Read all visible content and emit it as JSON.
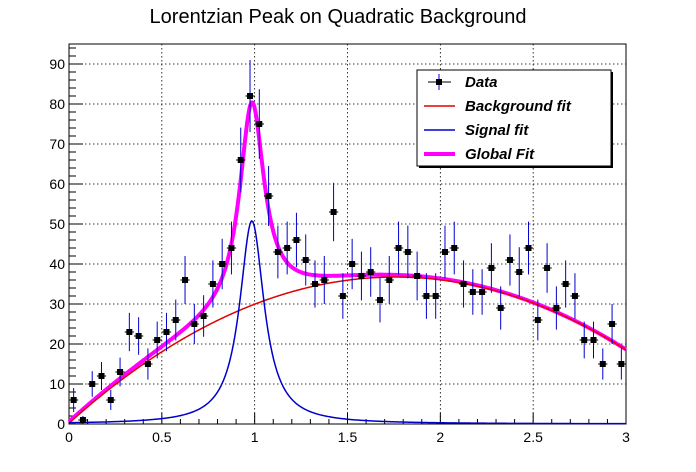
{
  "chart_data": {
    "type": "scatter",
    "title": "Lorentzian Peak on Quadratic Background",
    "xlabel": "",
    "ylabel": "",
    "xlim": [
      0,
      3
    ],
    "ylim": [
      0,
      95
    ],
    "x_ticks": [
      0,
      0.5,
      1,
      1.5,
      2,
      2.5,
      3
    ],
    "x_tick_labels": [
      "0",
      "0.5",
      "1",
      "1.5",
      "2",
      "2.5",
      "3"
    ],
    "y_ticks": [
      0,
      10,
      20,
      30,
      40,
      50,
      60,
      70,
      80,
      90
    ],
    "y_tick_labels": [
      "0",
      "10",
      "20",
      "30",
      "40",
      "50",
      "60",
      "70",
      "80",
      "90"
    ],
    "grid": true,
    "legend_position": "top-right",
    "legend": [
      {
        "label": "Data",
        "color": "#000000",
        "kind": "marker"
      },
      {
        "label": "Background fit",
        "color": "#e00000",
        "kind": "line"
      },
      {
        "label": "Signal fit",
        "color": "#0000cc",
        "kind": "line"
      },
      {
        "label": "Global Fit",
        "color": "#ff00ff",
        "kind": "thick-line"
      }
    ],
    "data_series": {
      "name": "Data",
      "x": [
        0.025,
        0.075,
        0.125,
        0.175,
        0.225,
        0.275,
        0.325,
        0.375,
        0.425,
        0.475,
        0.525,
        0.575,
        0.625,
        0.675,
        0.725,
        0.775,
        0.825,
        0.875,
        0.925,
        0.975,
        1.025,
        1.075,
        1.125,
        1.175,
        1.225,
        1.275,
        1.325,
        1.375,
        1.425,
        1.475,
        1.525,
        1.575,
        1.625,
        1.675,
        1.725,
        1.775,
        1.825,
        1.875,
        1.925,
        1.975,
        2.025,
        2.075,
        2.125,
        2.175,
        2.225,
        2.275,
        2.325,
        2.375,
        2.425,
        2.475,
        2.525,
        2.575,
        2.625,
        2.675,
        2.725,
        2.775,
        2.825,
        2.875,
        2.925,
        2.975
      ],
      "y": [
        6,
        1,
        10,
        12,
        6,
        13,
        23,
        22,
        15,
        21,
        23,
        26,
        36,
        25,
        27,
        35,
        40,
        44,
        66,
        82,
        75,
        57,
        43,
        44,
        46,
        41,
        35,
        36,
        53,
        32,
        40,
        37,
        38,
        31,
        36,
        44,
        43,
        37,
        32,
        32,
        43,
        44,
        35,
        33,
        33,
        39,
        29,
        41,
        38,
        44,
        26,
        39,
        29,
        35,
        32,
        21,
        21,
        15,
        25,
        15
      ],
      "y_err": [
        3,
        1,
        3.2,
        3.5,
        2.5,
        3.6,
        4.8,
        4.7,
        3.9,
        4.6,
        4.8,
        5.1,
        6,
        5,
        5.2,
        5.9,
        6.3,
        6.6,
        8.1,
        9,
        8.7,
        7.5,
        6.6,
        6.6,
        6.8,
        6.4,
        5.9,
        6,
        7.3,
        5.7,
        6.3,
        6.1,
        6.2,
        5.6,
        6,
        6.6,
        6.6,
        6.1,
        5.7,
        5.7,
        6.6,
        6.6,
        5.9,
        5.7,
        5.7,
        6.2,
        5.4,
        6.4,
        6.2,
        6.6,
        5.1,
        6.2,
        5.4,
        5.9,
        5.7,
        4.6,
        4.6,
        3.9,
        5,
        3.9
      ]
    },
    "fit_model": {
      "background": {
        "a": 0.25,
        "b": 41.5,
        "c": -11.8
      },
      "signal": {
        "amplitude": 50.8,
        "mean": 0.985,
        "gamma": 0.16
      }
    }
  }
}
